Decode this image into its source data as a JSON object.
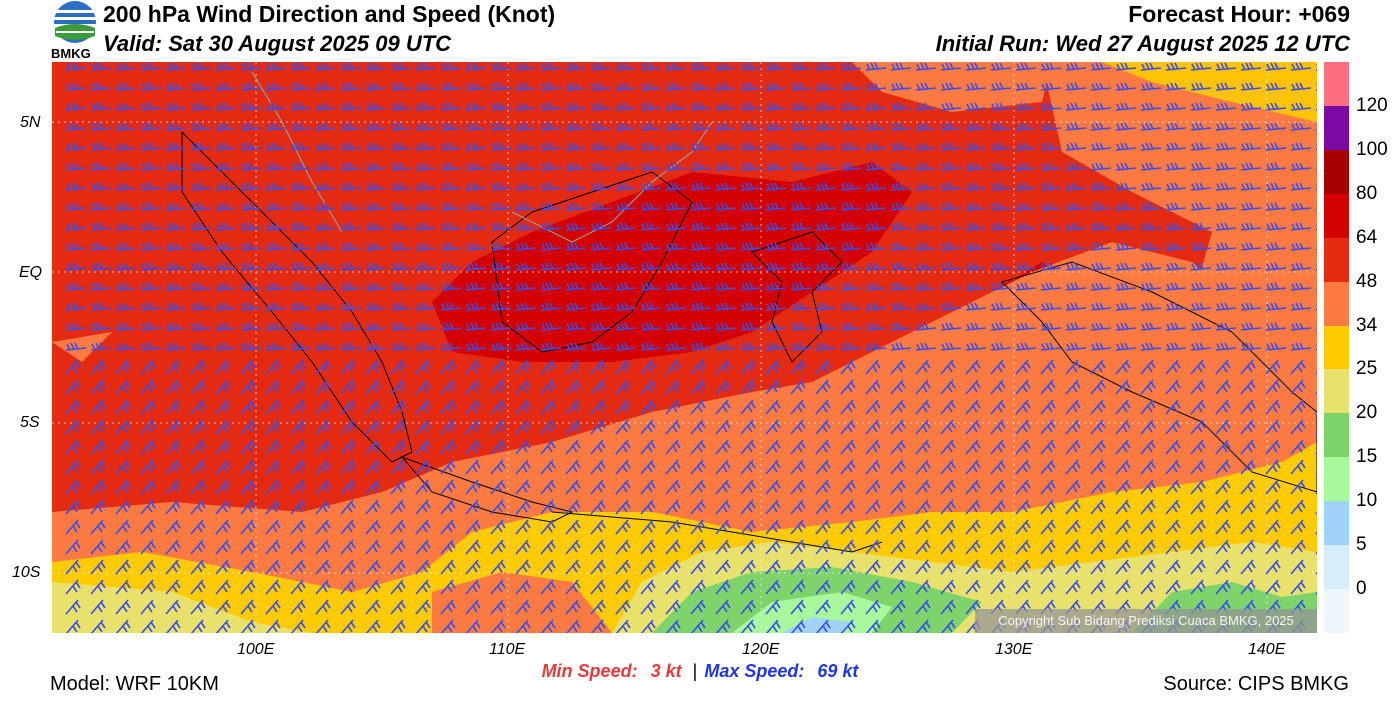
{
  "header": {
    "title": "200 hPa Wind Direction and Speed (Knot)",
    "valid": "Valid: Sat 30 August 2025 09 UTC",
    "forecast_hour": "Forecast Hour: +069",
    "initial_run": "Initial Run: Wed 27 August 2025 12 UTC",
    "logo_text": "BMKG"
  },
  "map": {
    "lat_labels": [
      "5N",
      "EQ",
      "5S",
      "10S"
    ],
    "lon_labels": [
      "100E",
      "110E",
      "120E",
      "130E",
      "140E"
    ],
    "copyright": "Copyright Sub Bidang Prediksi Cuaca BMKG, 2025"
  },
  "colorbar": {
    "labels": [
      "120",
      "100",
      "80",
      "64",
      "48",
      "34",
      "25",
      "20",
      "15",
      "10",
      "5",
      "0"
    ],
    "colors": [
      "#fd6f7f",
      "#7b0aa3",
      "#a70000",
      "#d40000",
      "#e42b12",
      "#fd7a42",
      "#fecb00",
      "#e8e26d",
      "#7ed46a",
      "#a8f89c",
      "#a0d3f7",
      "#d6eefc",
      "#eef6fc"
    ]
  },
  "footer": {
    "min_label": "Min Speed:",
    "min_value": "3 kt",
    "separator": "|",
    "max_label": "Max Speed:",
    "max_value": "69 kt",
    "model": "Model: WRF 10KM",
    "source": "Source: CIPS BMKG"
  },
  "colors": {
    "min_text": "#e83a3a",
    "max_text": "#1f35e6",
    "barb": "#3a4fe8",
    "band_48_64": "#e42b12",
    "band_64_80": "#d40000",
    "band_34_48": "#fd7a42",
    "band_25_34": "#fecb00"
  }
}
